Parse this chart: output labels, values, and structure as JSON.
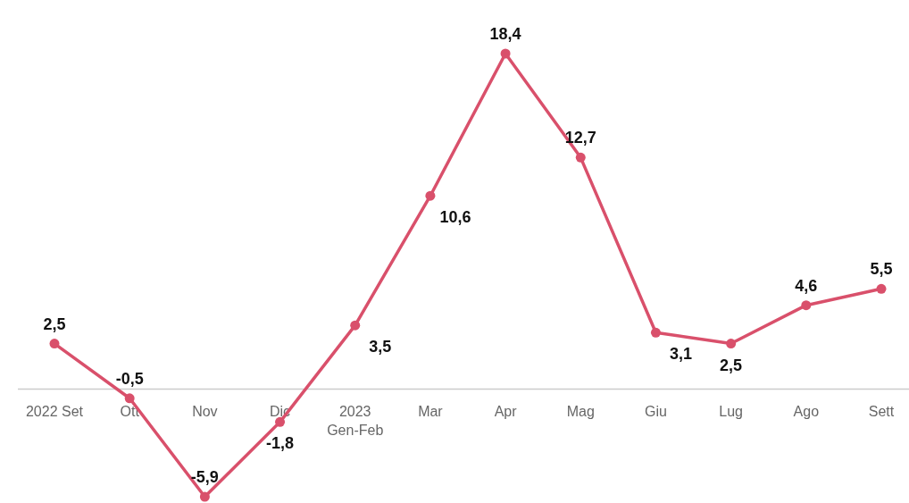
{
  "chart_data": {
    "type": "line",
    "categories": [
      "2022 Set",
      "Ott",
      "Nov",
      "Dic",
      "2023\nGen-Feb",
      "Mar",
      "Apr",
      "Mag",
      "Giu",
      "Lug",
      "Ago",
      "Sett"
    ],
    "series": [
      {
        "color": "#d9506b",
        "values": [
          2.5,
          -0.5,
          -5.9,
          -1.8,
          3.5,
          10.6,
          18.4,
          12.7,
          3.1,
          2.5,
          4.6,
          5.5
        ],
        "value_labels": [
          "2,5",
          "-0,5",
          "-5,9",
          "-1,8",
          "3,5",
          "10,6",
          "18,4",
          "12,7",
          "3,1",
          "2,5",
          "4,6",
          "5,5"
        ]
      }
    ],
    "marker": "circle",
    "line_style": "solid"
  }
}
